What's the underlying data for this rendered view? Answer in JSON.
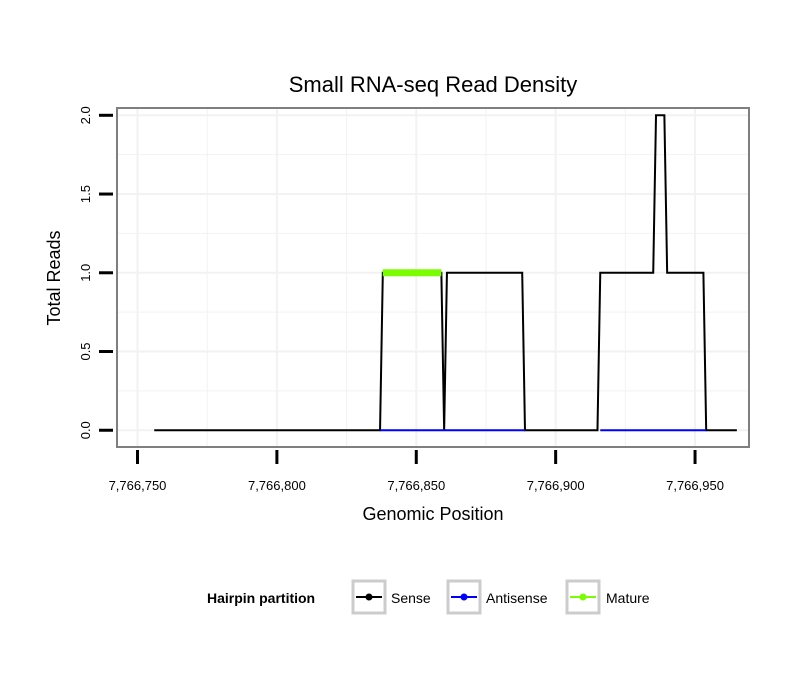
{
  "chart_data": {
    "type": "line",
    "title": "Small RNA-seq Read Density",
    "xlabel": "Genomic Position",
    "ylabel": "Total Reads",
    "xlim": [
      7766743,
      7766969
    ],
    "ylim": [
      -0.1,
      2.04
    ],
    "x_ticks": [
      7766750,
      7766800,
      7766850,
      7766900,
      7766950
    ],
    "x_tick_labels": [
      "7,766,750",
      "7,766,800",
      "7,766,850",
      "7,766,900",
      "7,766,950"
    ],
    "y_ticks": [
      0,
      0.5,
      1,
      1.5,
      2
    ],
    "y_tick_labels": [
      "0.0",
      "0.5",
      "1.0",
      "1.5",
      "2.0"
    ],
    "grid": true,
    "legend": {
      "title": "Hairpin partition",
      "position": "bottom",
      "entries": [
        {
          "name": "Sense",
          "color": "#000000"
        },
        {
          "name": "Antisense",
          "color": "#0000ff"
        },
        {
          "name": "Mature",
          "color": "#7cfc00"
        }
      ]
    },
    "series": [
      {
        "name": "Sense",
        "color": "#000000",
        "points": [
          [
            7766756,
            0
          ],
          [
            7766837,
            0
          ],
          [
            7766838,
            1
          ],
          [
            7766859,
            1
          ],
          [
            7766860,
            0
          ],
          [
            7766861,
            1
          ],
          [
            7766888,
            1
          ],
          [
            7766889,
            0
          ],
          [
            7766915,
            0
          ],
          [
            7766916,
            1
          ],
          [
            7766935,
            1
          ],
          [
            7766936,
            2
          ],
          [
            7766939,
            2
          ],
          [
            7766940,
            1
          ],
          [
            7766953,
            1
          ],
          [
            7766954,
            0
          ],
          [
            7766965,
            0
          ]
        ]
      },
      {
        "name": "Antisense",
        "color": "#0000ff",
        "points": [
          [
            7766837,
            0
          ],
          [
            7766889,
            0
          ]
        ]
      },
      {
        "name": "Antisense",
        "color": "#0000ff",
        "points": [
          [
            7766916,
            0
          ],
          [
            7766954,
            0
          ]
        ]
      },
      {
        "name": "Mature",
        "color": "#7cfc00",
        "points": [
          [
            7766838,
            1
          ],
          [
            7766859,
            1
          ]
        ]
      }
    ]
  }
}
